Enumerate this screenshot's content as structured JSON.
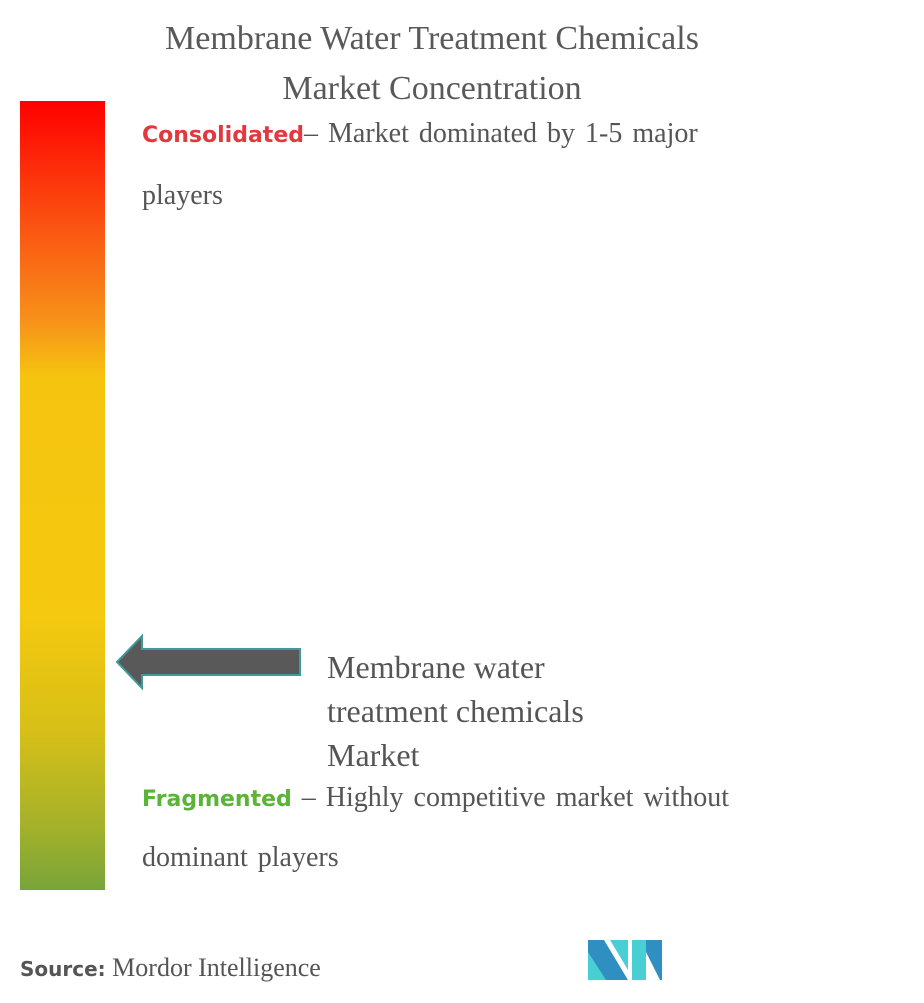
{
  "title_line1": "Membrane Water Treatment Chemicals",
  "title_line2": "Market Concentration",
  "consolidated": {
    "label": "Consolidated",
    "text": "– Market dominated by 1-5 major",
    "text2": "players",
    "color": "#e0393e"
  },
  "fragmented": {
    "label": "Fragmented",
    "text": " – Highly competitive market without",
    "text2": "dominant players",
    "color": "#5bb33a"
  },
  "market_label": "Membrane water treatment chemicals Market",
  "market_position_fraction": 0.29,
  "arrow_color": "#595959",
  "source": {
    "label": "Source:",
    "text": "Mordor Intelligence"
  },
  "logo_text": "MI"
}
